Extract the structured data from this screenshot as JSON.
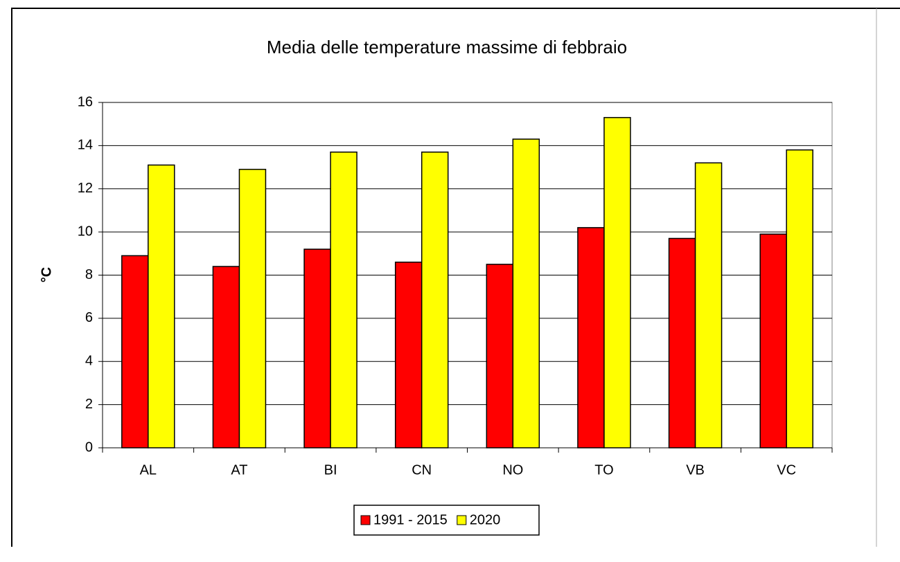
{
  "chart_data": {
    "type": "bar",
    "title": "Media delle temperature massime di febbraio",
    "y_label": "°C",
    "categories": [
      "AL",
      "AT",
      "BI",
      "CN",
      "NO",
      "TO",
      "VB",
      "VC"
    ],
    "series": [
      {
        "name": "1991 - 2015",
        "color": "#ff0000",
        "values": [
          8.9,
          8.4,
          9.2,
          8.6,
          8.5,
          10.2,
          9.7,
          9.9
        ]
      },
      {
        "name": "2020",
        "color": "#ffff00",
        "values": [
          13.1,
          12.9,
          13.7,
          13.7,
          14.3,
          15.3,
          13.2,
          13.8
        ]
      }
    ],
    "ylim": [
      0,
      16
    ],
    "yticks": [
      0,
      2,
      4,
      6,
      8,
      10,
      12,
      14,
      16
    ],
    "grid": true,
    "legend": "bottom"
  }
}
